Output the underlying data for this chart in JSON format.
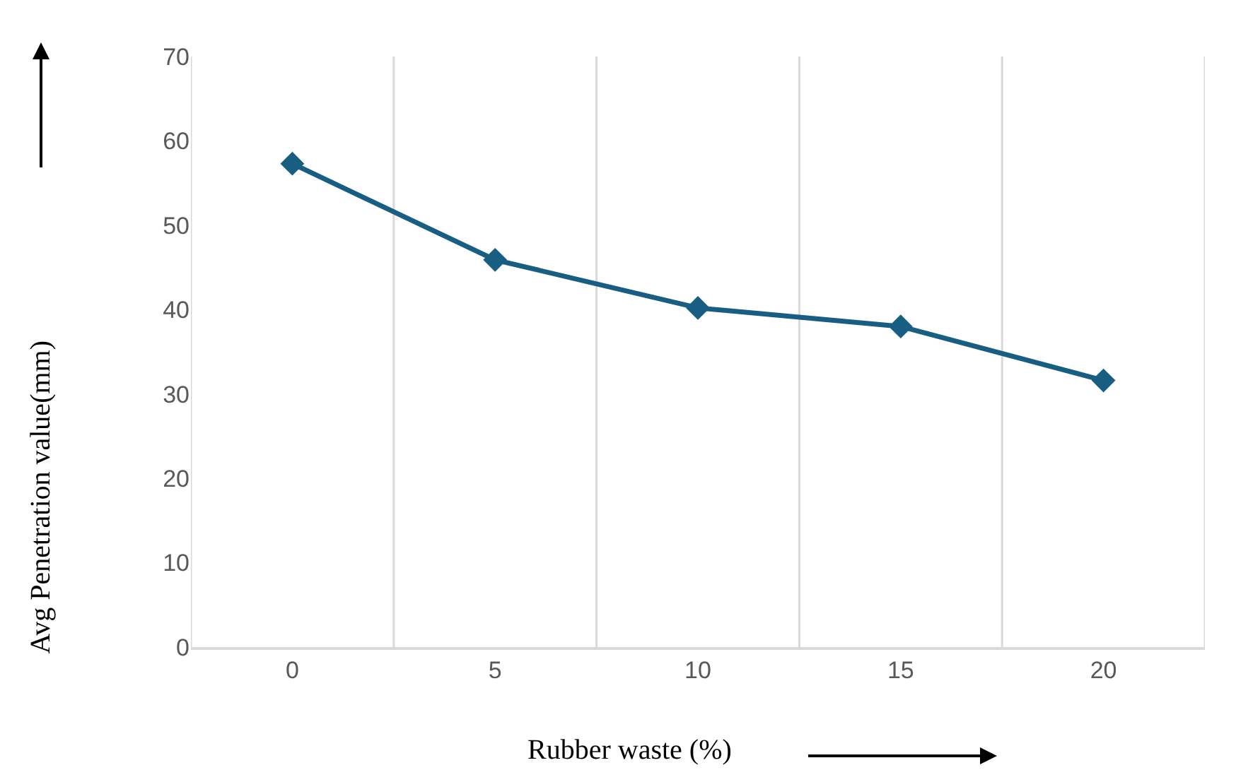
{
  "chart_data": {
    "type": "line",
    "xlabel": "Rubber waste (%)",
    "ylabel": "Avg Penetration value(mm)",
    "categories": [
      "0",
      "5",
      "10",
      "15",
      "20"
    ],
    "series": [
      {
        "color": "#175e82",
        "values": [
          57.3,
          45.9,
          40.2,
          38.0,
          31.6
        ]
      }
    ],
    "ylim": [
      0,
      70
    ],
    "yticks": [
      0,
      10,
      20,
      30,
      40,
      50,
      60,
      70
    ],
    "grid": "x",
    "marker": "diamond",
    "line_style": "solid"
  }
}
